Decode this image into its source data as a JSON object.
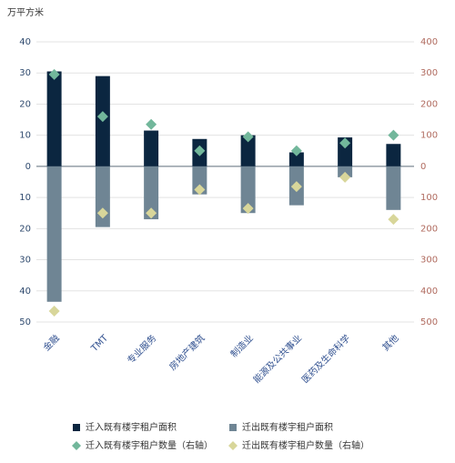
{
  "chart_data": {
    "type": "bar",
    "y_label": "万平方米",
    "categories": [
      "金融",
      "TMT",
      "专业服务",
      "房地产建筑",
      "制造业",
      "能源及公共事业",
      "医药及生命科学",
      "其他"
    ],
    "series": [
      {
        "name": "迁入既有楼宇租户面积",
        "type": "bar",
        "color": "#0b2640",
        "values": [
          30.5,
          29,
          11.5,
          8.8,
          10,
          4.5,
          9.3,
          7.2
        ]
      },
      {
        "name": "迁出既有楼宇租户面积",
        "type": "bar",
        "color": "#6f8594",
        "values": [
          -43.5,
          -19.5,
          -17,
          -9,
          -15,
          -12.5,
          -3.5,
          -14
        ]
      },
      {
        "name": "迁入既有楼宇租户数量（右轴）",
        "type": "scatter",
        "axis": "y2",
        "color": "#72b79b",
        "values": [
          295,
          160,
          135,
          50,
          95,
          50,
          75,
          100
        ]
      },
      {
        "name": "迁出既有楼宇租户数量（右轴）",
        "type": "scatter",
        "axis": "y2",
        "color": "#d8d69a",
        "values": [
          -465,
          -150,
          -150,
          -75,
          -135,
          -65,
          -35,
          -170
        ]
      }
    ],
    "ylim": [
      -50,
      40
    ],
    "yticks": [
      40,
      30,
      20,
      10,
      0,
      {
        "value": -10,
        "label": "10"
      },
      {
        "value": -20,
        "label": "20"
      },
      {
        "value": -30,
        "label": "30"
      },
      {
        "value": -40,
        "label": "40"
      },
      {
        "value": -50,
        "label": "50"
      }
    ],
    "y2lim": [
      -500,
      400
    ],
    "y2ticks": [
      400,
      300,
      200,
      100,
      0,
      {
        "value": -100,
        "label": "100"
      },
      {
        "value": -200,
        "label": "200"
      },
      {
        "value": -300,
        "label": "300"
      },
      {
        "value": -400,
        "label": "400"
      },
      {
        "value": -500,
        "label": "500"
      }
    ],
    "grid": true
  }
}
